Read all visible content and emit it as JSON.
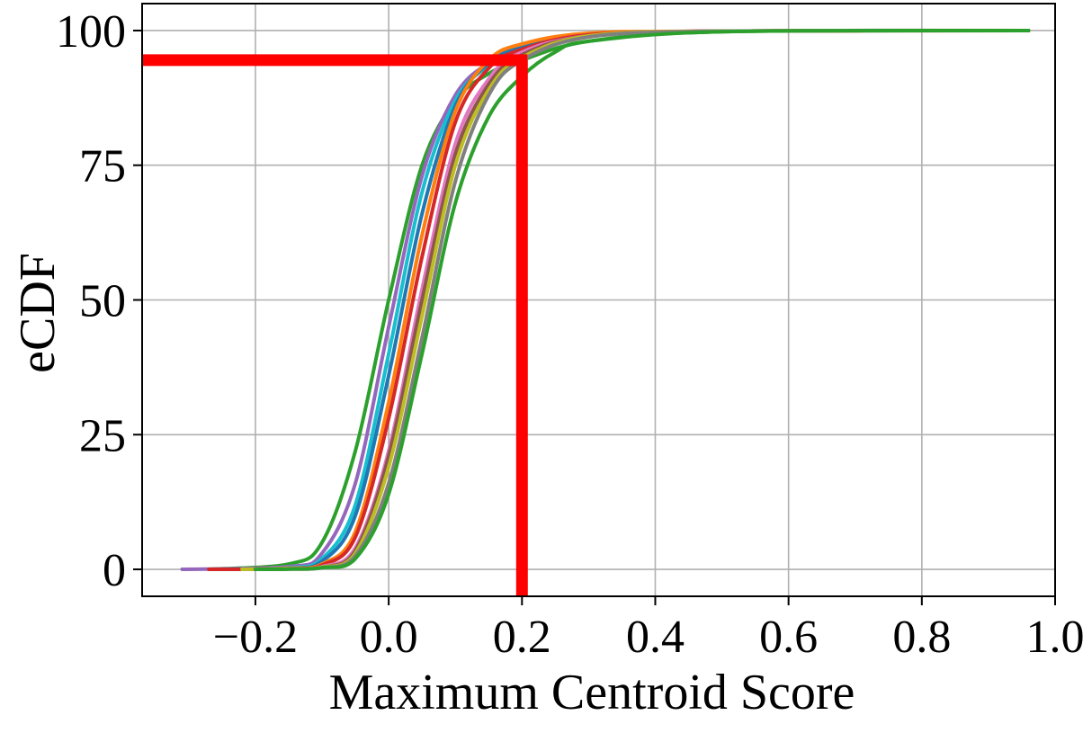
{
  "chart_data": {
    "type": "line",
    "title": "",
    "xlabel": "Maximum Centroid Score",
    "ylabel": "eCDF",
    "xlim": [
      -0.37,
      1.0
    ],
    "ylim": [
      -5,
      105
    ],
    "xticks": [
      -0.2,
      0.0,
      0.2,
      0.4,
      0.6,
      0.8,
      1.0
    ],
    "xtick_labels": [
      "−0.2",
      "0.0",
      "0.2",
      "0.4",
      "0.6",
      "0.8",
      "1.0"
    ],
    "yticks": [
      0,
      25,
      50,
      75,
      100
    ],
    "ytick_labels": [
      "0",
      "25",
      "50",
      "75",
      "100"
    ],
    "grid": true,
    "legend": "none",
    "series": [
      {
        "color": "#2ca02c",
        "x": [
          -0.27,
          -0.15,
          -0.1,
          -0.05,
          0.0,
          0.05,
          0.1,
          0.15,
          0.2,
          0.3,
          0.5,
          0.96
        ],
        "values": [
          0,
          1,
          5,
          22,
          50,
          75,
          87,
          92,
          94.5,
          98,
          99.8,
          100
        ]
      },
      {
        "color": "#9467bd",
        "x": [
          -0.31,
          -0.15,
          -0.1,
          -0.05,
          0.0,
          0.05,
          0.1,
          0.15,
          0.2,
          0.3,
          0.5,
          0.96
        ],
        "values": [
          0,
          0.5,
          3,
          16,
          45,
          73,
          88,
          94,
          96.5,
          99,
          99.9,
          100
        ]
      },
      {
        "color": "#17becf",
        "x": [
          -0.25,
          -0.15,
          -0.1,
          -0.05,
          0.0,
          0.05,
          0.1,
          0.15,
          0.2,
          0.3,
          0.5,
          0.96
        ],
        "values": [
          0,
          0.3,
          2,
          12,
          40,
          70,
          87,
          93.5,
          96.5,
          99,
          99.9,
          100
        ]
      },
      {
        "color": "#1f77b4",
        "x": [
          -0.25,
          -0.15,
          -0.1,
          -0.05,
          0.0,
          0.05,
          0.1,
          0.15,
          0.2,
          0.3,
          0.5,
          0.96
        ],
        "values": [
          0,
          0.2,
          1.5,
          10,
          36,
          66,
          86,
          94,
          97,
          99.3,
          99.9,
          100
        ]
      },
      {
        "color": "#ff7f0e",
        "x": [
          -0.22,
          -0.15,
          -0.1,
          -0.05,
          0.0,
          0.05,
          0.1,
          0.15,
          0.2,
          0.3,
          0.5,
          0.96
        ],
        "values": [
          0,
          0.2,
          1,
          7,
          31,
          62,
          85,
          94.5,
          97.5,
          99.5,
          99.9,
          100
        ]
      },
      {
        "color": "#d62728",
        "x": [
          -0.27,
          -0.15,
          -0.1,
          -0.05,
          0.0,
          0.05,
          0.1,
          0.15,
          0.2,
          0.3,
          0.5,
          0.96
        ],
        "values": [
          0,
          0.1,
          0.8,
          6,
          28,
          58,
          83,
          93,
          96.5,
          99.2,
          99.9,
          100
        ]
      },
      {
        "color": "#e377c2",
        "x": [
          -0.22,
          -0.15,
          -0.1,
          -0.05,
          0.0,
          0.05,
          0.1,
          0.15,
          0.2,
          0.3,
          0.5,
          0.96
        ],
        "values": [
          0,
          0.1,
          0.5,
          4,
          22,
          52,
          79,
          91,
          96,
          99,
          99.9,
          100
        ]
      },
      {
        "color": "#8c564b",
        "x": [
          -0.22,
          -0.15,
          -0.1,
          -0.05,
          0.0,
          0.05,
          0.1,
          0.15,
          0.2,
          0.3,
          0.5,
          0.96
        ],
        "values": [
          0,
          0.1,
          0.4,
          3.5,
          21,
          50,
          77,
          90,
          95.5,
          99,
          99.9,
          100
        ]
      },
      {
        "color": "#bcbd22",
        "x": [
          -0.22,
          -0.15,
          -0.1,
          -0.05,
          0.0,
          0.05,
          0.1,
          0.15,
          0.2,
          0.3,
          0.5,
          0.96
        ],
        "values": [
          0,
          0.1,
          0.4,
          3,
          19,
          47,
          75,
          89,
          95,
          99,
          99.9,
          100
        ]
      },
      {
        "color": "#7f7f7f",
        "x": [
          -0.2,
          -0.15,
          -0.1,
          -0.05,
          0.0,
          0.05,
          0.1,
          0.15,
          0.2,
          0.3,
          0.5,
          0.96
        ],
        "values": [
          0,
          0.05,
          0.3,
          2.5,
          16,
          43,
          72,
          88,
          94.5,
          98.8,
          99.9,
          100
        ]
      },
      {
        "color": "#2ca02c",
        "x": [
          -0.2,
          -0.15,
          -0.1,
          -0.05,
          0.0,
          0.05,
          0.1,
          0.15,
          0.2,
          0.25,
          0.3,
          0.5,
          0.96
        ],
        "values": [
          0,
          0.05,
          0.3,
          2,
          14,
          40,
          68,
          84,
          91.5,
          96,
          98,
          99.8,
          100
        ]
      }
    ],
    "reference_lines": [
      {
        "type": "vertical",
        "x": 0.2,
        "color": "#ff0000"
      },
      {
        "type": "horizontal",
        "y": 94.5,
        "color": "#ff0000"
      }
    ]
  }
}
